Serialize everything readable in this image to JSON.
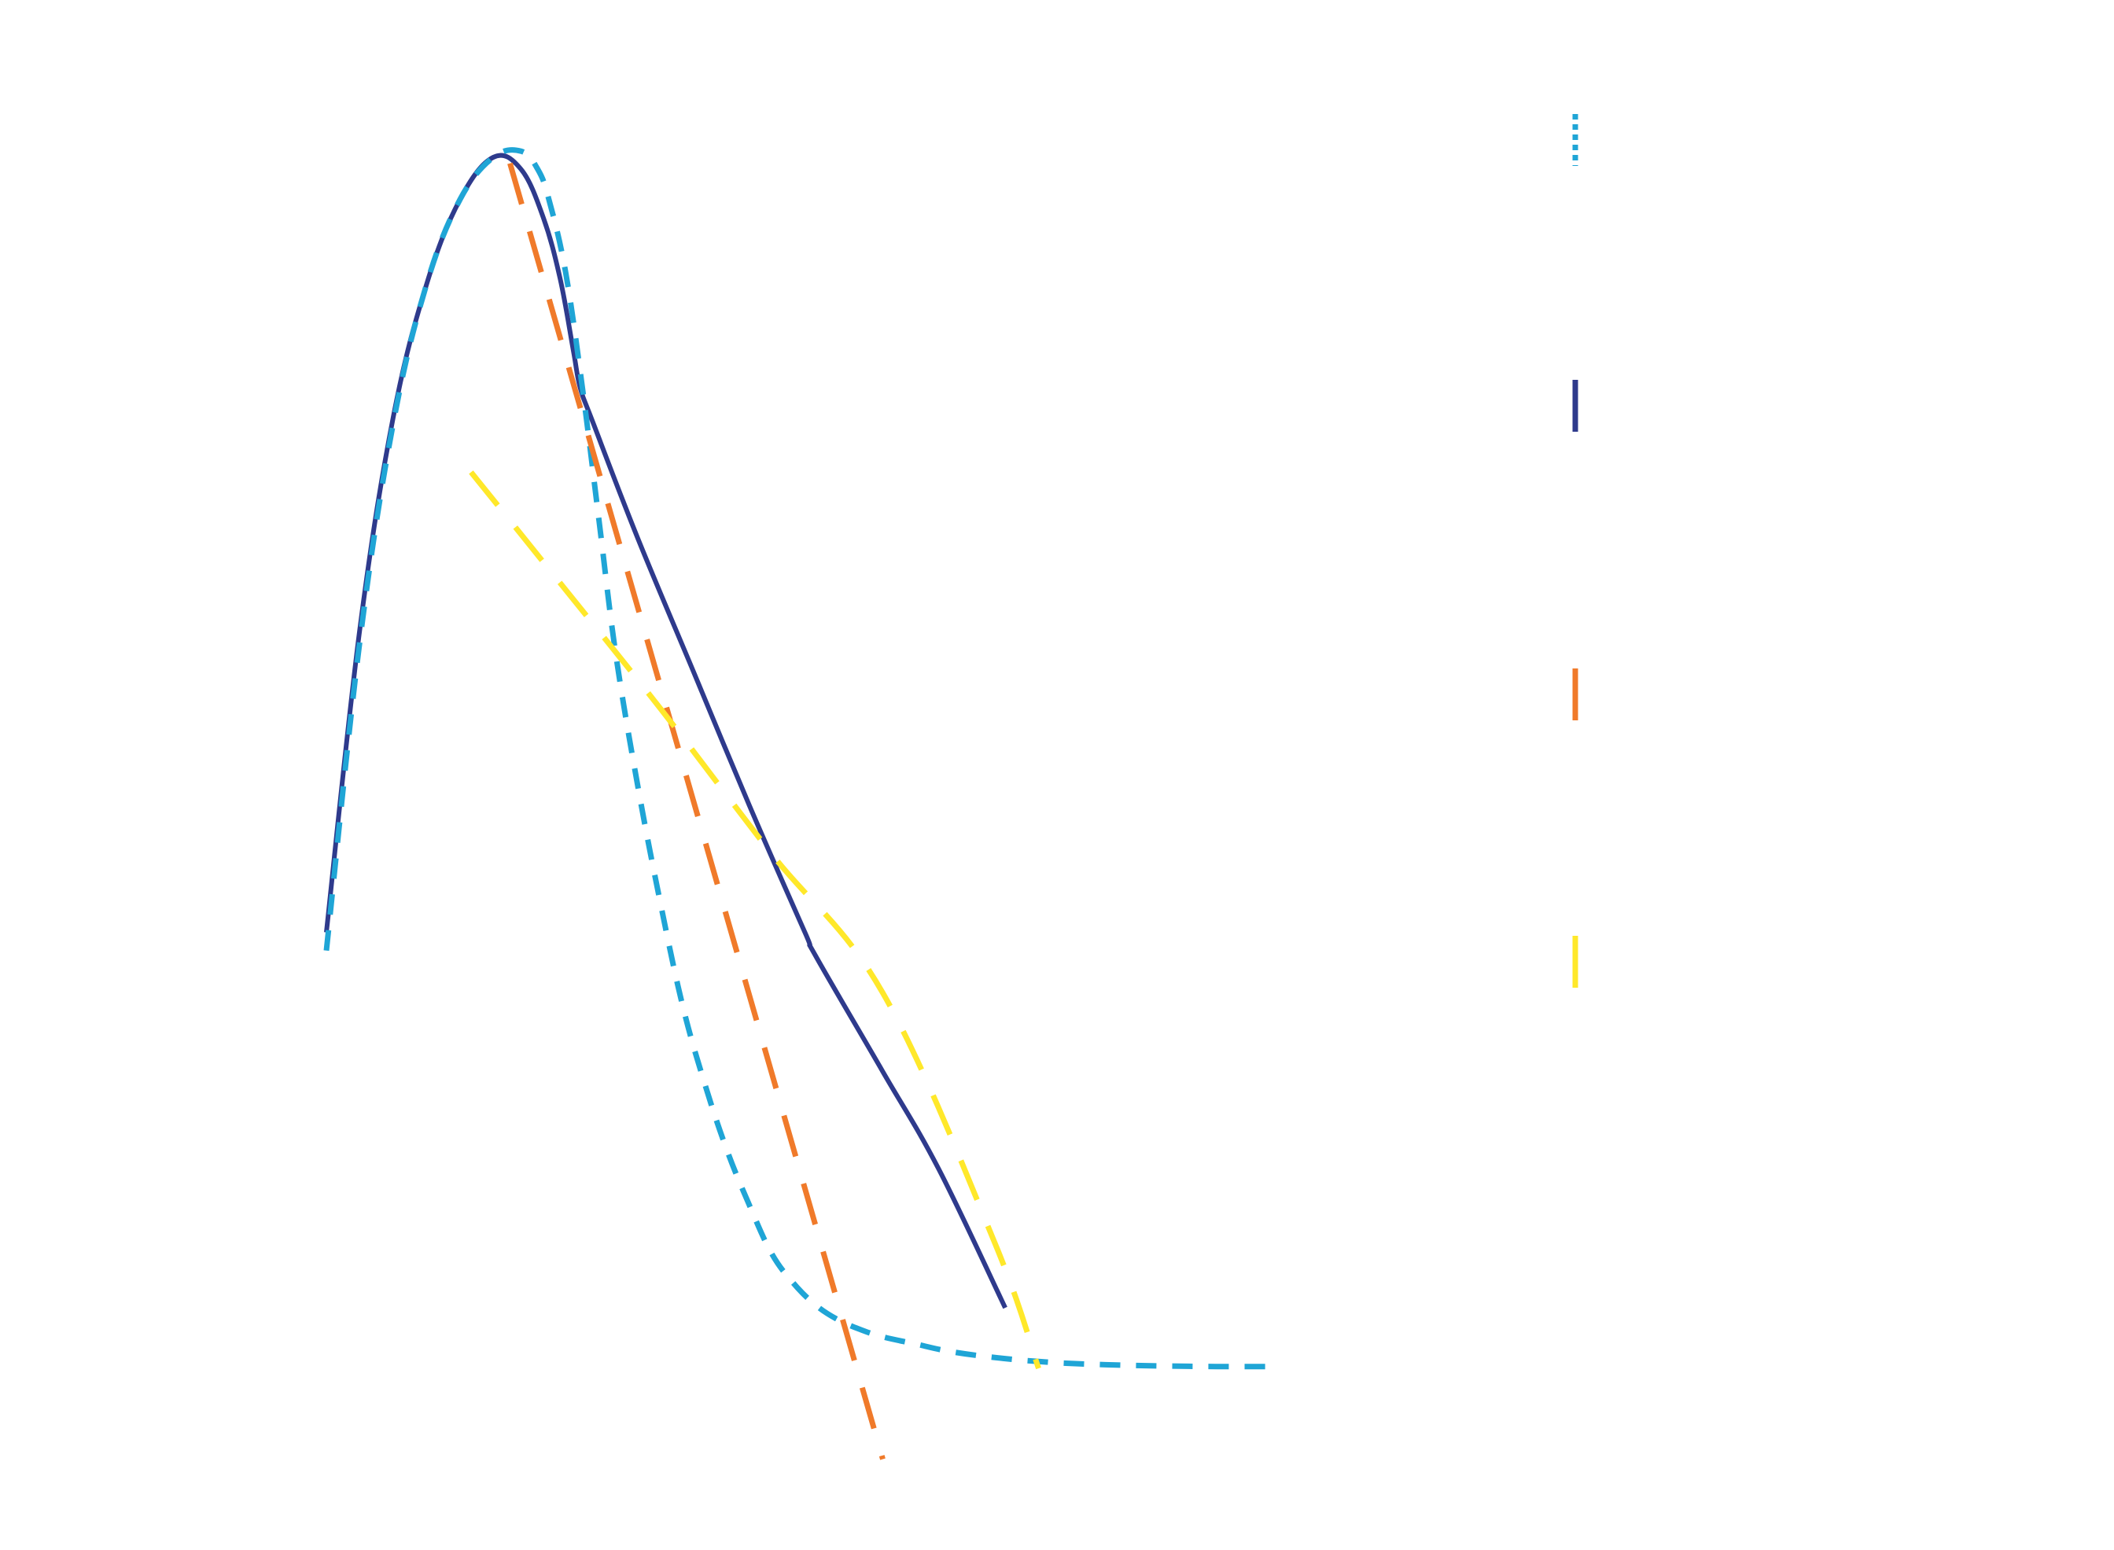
{
  "chart_data": {
    "type": "line",
    "title": "",
    "xlabel": "",
    "ylabel": "",
    "axes_visible": false,
    "grid": false,
    "legend": {
      "placement": "right",
      "entries": [
        {
          "series_index": 0,
          "color": "#1FA5D6",
          "style": "dotted"
        },
        {
          "series_index": 1,
          "color": "#2E3A8C",
          "style": "solid"
        },
        {
          "series_index": 2,
          "color": "#F07A2A",
          "style": "dashed"
        },
        {
          "series_index": 3,
          "color": "#FFE82A",
          "style": "dashed"
        }
      ]
    },
    "xlim": [
      0,
      1
    ],
    "ylim": [
      0,
      1
    ],
    "series": [
      {
        "color": "#1FA5D6",
        "style": "dashed-fine",
        "x": [
          0.0,
          0.03,
          0.06,
          0.09,
          0.12,
          0.15,
          0.175,
          0.19,
          0.2,
          0.215,
          0.23,
          0.245,
          0.26,
          0.28,
          0.3,
          0.32,
          0.34,
          0.36,
          0.38,
          0.4,
          0.42,
          0.44,
          0.46,
          0.48,
          0.5,
          0.53,
          0.56,
          0.6,
          0.65,
          0.7,
          0.75,
          0.8,
          0.85
        ],
        "y": [
          0.345,
          0.6,
          0.78,
          0.895,
          0.965,
          1.0,
          1.005,
          0.99,
          0.965,
          0.905,
          0.81,
          0.7,
          0.59,
          0.48,
          0.385,
          0.3,
          0.235,
          0.18,
          0.135,
          0.095,
          0.07,
          0.052,
          0.04,
          0.032,
          0.026,
          0.02,
          0.014,
          0.009,
          0.005,
          0.003,
          0.002,
          0.0015,
          0.0015
        ]
      },
      {
        "color": "#2E3A8C",
        "style": "solid",
        "x": [
          0.0,
          0.03,
          0.06,
          0.09,
          0.12,
          0.15,
          0.175,
          0.195,
          0.21,
          0.222,
          0.228,
          0.24,
          0.28,
          0.33,
          0.38,
          0.43,
          0.44,
          0.5,
          0.55,
          0.61
        ],
        "y": [
          0.36,
          0.61,
          0.785,
          0.895,
          0.965,
          1.0,
          0.99,
          0.95,
          0.9,
          0.84,
          0.81,
          0.78,
          0.685,
          0.575,
          0.465,
          0.36,
          0.34,
          0.245,
          0.165,
          0.05
        ]
      },
      {
        "color": "#F07A2A",
        "style": "dashed-long",
        "x": [
          0.165,
          0.5
        ],
        "y": [
          0.995,
          -0.075
        ]
      },
      {
        "color": "#FFE82A",
        "style": "dashed-long",
        "x": [
          0.13,
          0.2,
          0.3,
          0.4,
          0.5,
          0.6,
          0.64
        ],
        "y": [
          0.74,
          0.66,
          0.545,
          0.425,
          0.31,
          0.105,
          0.0
        ]
      }
    ]
  }
}
